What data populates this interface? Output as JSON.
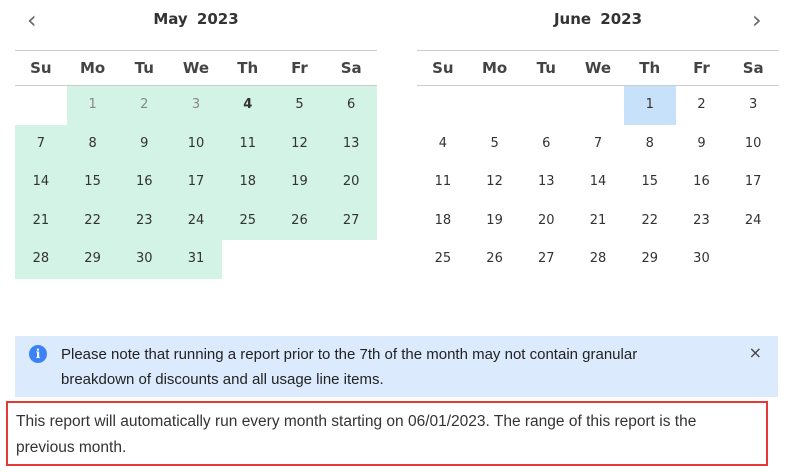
{
  "weekdays": [
    "Su",
    "Mo",
    "Tu",
    "We",
    "Th",
    "Fr",
    "Sa"
  ],
  "nav": {
    "prev_icon": "chevron-left-icon",
    "next_icon": "chevron-right-icon",
    "prev": "‹",
    "next": "›"
  },
  "calendars": [
    {
      "title": "May  2023",
      "weeks": [
        [
          "",
          "1",
          "2",
          "3",
          "4",
          "5",
          "6"
        ],
        [
          "7",
          "8",
          "9",
          "10",
          "11",
          "12",
          "13"
        ],
        [
          "14",
          "15",
          "16",
          "17",
          "18",
          "19",
          "20"
        ],
        [
          "21",
          "22",
          "23",
          "24",
          "25",
          "26",
          "27"
        ],
        [
          "28",
          "29",
          "30",
          "31",
          "",
          "",
          ""
        ]
      ],
      "selected_range": [
        "1",
        "31"
      ],
      "past_days": [
        "1",
        "2",
        "3"
      ],
      "bold_day": "4"
    },
    {
      "title": "June  2023",
      "weeks": [
        [
          "",
          "",
          "",
          "",
          "1",
          "2",
          "3"
        ],
        [
          "4",
          "5",
          "6",
          "7",
          "8",
          "9",
          "10"
        ],
        [
          "11",
          "12",
          "13",
          "14",
          "15",
          "16",
          "17"
        ],
        [
          "18",
          "19",
          "20",
          "21",
          "22",
          "23",
          "24"
        ],
        [
          "25",
          "26",
          "27",
          "28",
          "29",
          "30",
          ""
        ]
      ],
      "highlighted_day": "1"
    }
  ],
  "colors": {
    "range": "#d3f3e6",
    "highlight": "#c8e1fa",
    "info_bg": "#dceafd",
    "note_border": "#e53935"
  },
  "info": {
    "icon": "info-icon",
    "icon_glyph": "i",
    "text": "Please note that running a report prior to the 7th of the month may not contain granular breakdown of discounts and all usage line items.",
    "close": "×"
  },
  "note": {
    "text": "This report will automatically run every month starting on 06/01/2023. The range of this report is the previous month."
  }
}
